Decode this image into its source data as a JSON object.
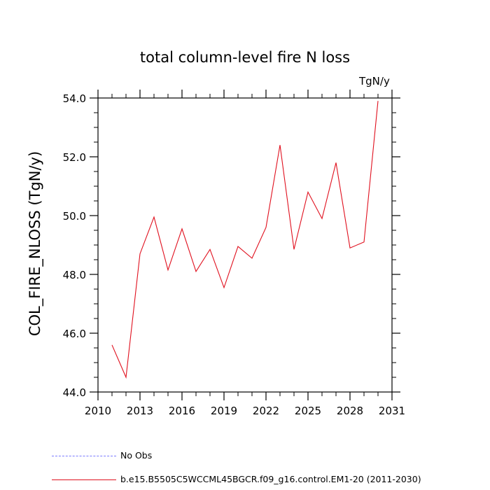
{
  "chart_data": {
    "type": "line",
    "title": "total column-level fire N loss",
    "units_label": "TgN/y",
    "ylabel": "COL_FIRE_NLOSS  (TgN/y)",
    "xlabel": "",
    "xlim": [
      2010,
      2031
    ],
    "ylim": [
      44.0,
      54.0
    ],
    "x_ticks": [
      2010,
      2013,
      2016,
      2019,
      2022,
      2025,
      2028,
      2031
    ],
    "y_ticks": [
      44.0,
      46.0,
      48.0,
      50.0,
      52.0,
      54.0
    ],
    "y_tick_labels": [
      "44.0",
      "46.0",
      "48.0",
      "50.0",
      "52.0",
      "54.0"
    ],
    "series": [
      {
        "name": "b.e15.B5505C5WCCML45BGCR.f09_g16.control.EM1-20 (2011-2030)",
        "color": "#e0101e",
        "x": [
          2011,
          2012,
          2013,
          2014,
          2015,
          2016,
          2017,
          2018,
          2019,
          2020,
          2021,
          2022,
          2023,
          2024,
          2025,
          2026,
          2027,
          2028,
          2029,
          2030
        ],
        "y": [
          45.6,
          44.5,
          48.7,
          49.95,
          48.15,
          49.55,
          48.1,
          48.85,
          47.55,
          48.95,
          48.55,
          49.6,
          52.4,
          48.85,
          50.8,
          49.9,
          51.8,
          48.9,
          49.1,
          53.9
        ]
      }
    ],
    "legend": {
      "placement": "bottom-left",
      "entries": [
        {
          "label": "No Obs",
          "color": "#7a7aff",
          "style": "dashed"
        },
        {
          "label": "b.e15.B5505C5WCCML45BGCR.f09_g16.control.EM1-20 (2011-2030)",
          "color": "#e0101e",
          "style": "solid"
        }
      ]
    },
    "grid": false
  }
}
